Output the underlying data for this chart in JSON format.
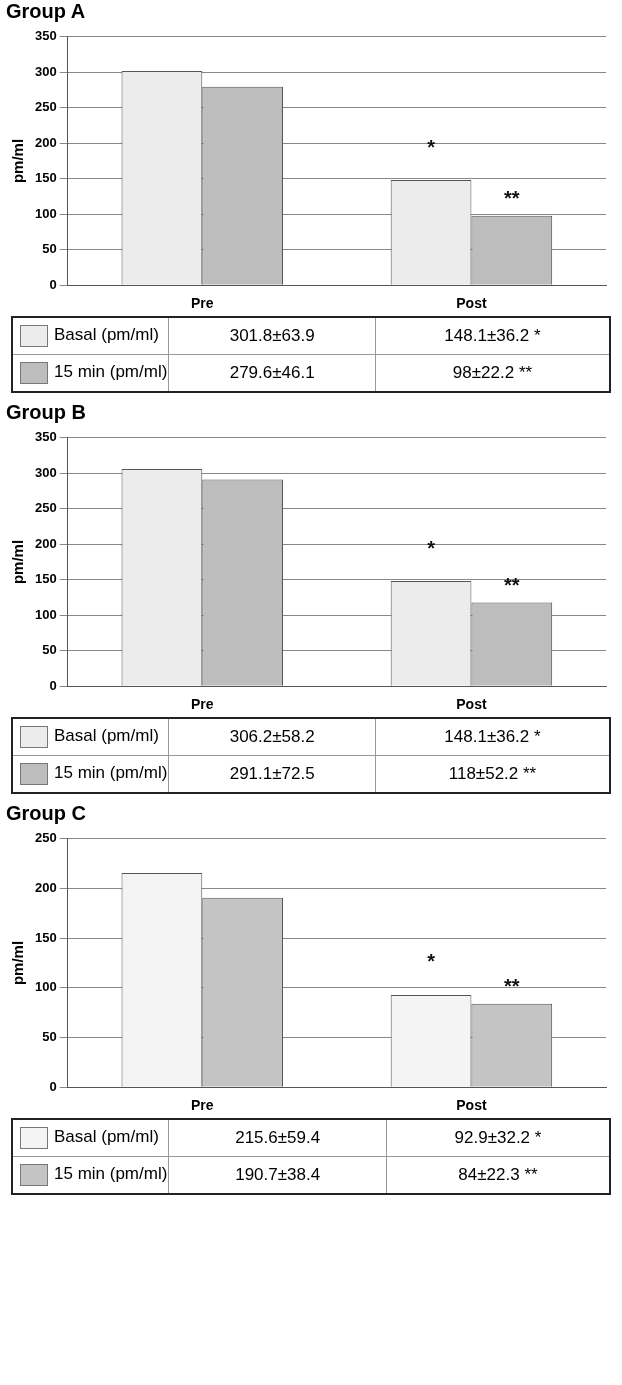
{
  "chart_data": [
    {
      "type": "bar",
      "title": "Group A",
      "ylabel": "pm/ml",
      "categories": [
        "Pre",
        "Post"
      ],
      "ylim": [
        0,
        350
      ],
      "yticks": [
        0,
        50,
        100,
        150,
        200,
        250,
        300,
        350
      ],
      "grid": "y",
      "series": [
        {
          "name": "Basal (pm/ml)",
          "color": "#ececec",
          "values": [
            301.8,
            148.1
          ],
          "value_labels": [
            "301.8±63.9",
            "148.1±36.2 *"
          ]
        },
        {
          "name": "15 min (pm/ml)",
          "color": "#bdbdbd",
          "values": [
            279.6,
            98
          ],
          "value_labels": [
            "279.6±46.1",
            "98±22.2 **"
          ]
        }
      ],
      "annotations": [
        "*",
        "**"
      ],
      "legend": "bottom"
    },
    {
      "type": "bar",
      "title": "Group B",
      "ylabel": "pm/ml",
      "categories": [
        "Pre",
        "Post"
      ],
      "ylim": [
        0,
        350
      ],
      "yticks": [
        0,
        50,
        100,
        150,
        200,
        250,
        300,
        350
      ],
      "grid": "y",
      "series": [
        {
          "name": "Basal (pm/ml)",
          "color": "#ececec",
          "values": [
            306.2,
            148.1
          ],
          "value_labels": [
            "306.2±58.2",
            "148.1±36.2 *"
          ]
        },
        {
          "name": "15 min (pm/ml)",
          "color": "#bdbdbd",
          "values": [
            291.1,
            118
          ],
          "value_labels": [
            "291.1±72.5",
            "118±52.2 **"
          ]
        }
      ],
      "annotations": [
        "*",
        "**"
      ],
      "legend": "bottom"
    },
    {
      "type": "bar",
      "title": "Group C",
      "ylabel": "pm/ml",
      "categories": [
        "Pre",
        "Post"
      ],
      "ylim": [
        0,
        250
      ],
      "yticks": [
        0,
        50,
        100,
        150,
        200,
        250
      ],
      "grid": "y",
      "series": [
        {
          "name": "Basal (pm/ml)",
          "color": "#f4f4f4",
          "values": [
            215.6,
            92.9
          ],
          "value_labels": [
            "215.6±59.4",
            "92.9±32.2 *"
          ]
        },
        {
          "name": "15 min (pm/ml)",
          "color": "#c4c4c4",
          "values": [
            190.7,
            84
          ],
          "value_labels": [
            "190.7±38.4",
            "84±22.3 **"
          ]
        }
      ],
      "annotations": [
        "*",
        "**"
      ],
      "legend": "bottom"
    }
  ]
}
